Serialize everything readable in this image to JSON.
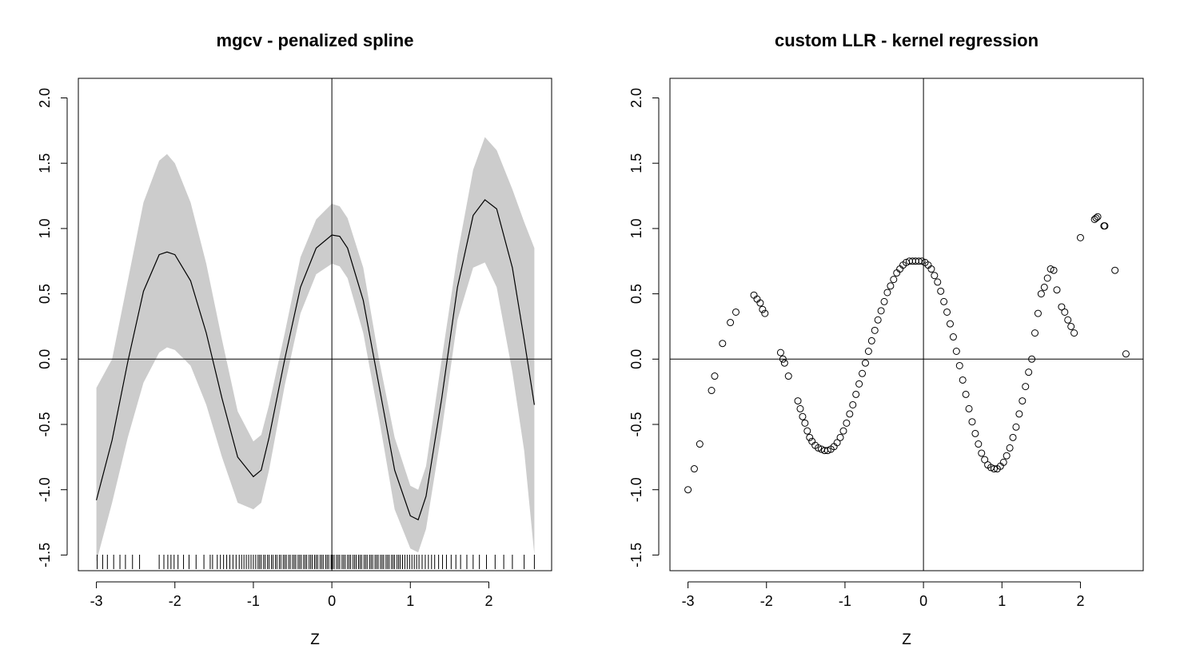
{
  "chart_data": [
    {
      "type": "line",
      "title": "mgcv - penalized spline",
      "xlabel": "Z",
      "ylabel": "",
      "xlim": [
        -3.23,
        2.8
      ],
      "ylim": [
        -1.62,
        2.15
      ],
      "xticks": [
        -3,
        -2,
        -1,
        0,
        1,
        2
      ],
      "yticks": [
        -1.5,
        -1.0,
        -0.5,
        0.0,
        0.5,
        1.0,
        1.5,
        2.0
      ],
      "xtick_labels": [
        "-3",
        "-2",
        "-1",
        "0",
        "1",
        "2"
      ],
      "ytick_labels": [
        "-1.5",
        "-1.0",
        "-0.5",
        "0.0",
        "0.5",
        "1.0",
        "1.5",
        "2.0"
      ],
      "reference_lines": {
        "x": 0,
        "y": 0
      },
      "series": [
        {
          "role": "fit",
          "color": "#000000",
          "x": [
            -3.0,
            -2.8,
            -2.6,
            -2.4,
            -2.2,
            -2.1,
            -2.0,
            -1.8,
            -1.6,
            -1.4,
            -1.2,
            -1.0,
            -0.9,
            -0.8,
            -0.6,
            -0.4,
            -0.2,
            0.0,
            0.1,
            0.2,
            0.4,
            0.6,
            0.8,
            1.0,
            1.1,
            1.2,
            1.4,
            1.6,
            1.8,
            1.95,
            2.1,
            2.3,
            2.45,
            2.58
          ],
          "y": [
            -1.08,
            -0.62,
            -0.02,
            0.52,
            0.8,
            0.82,
            0.8,
            0.6,
            0.2,
            -0.3,
            -0.75,
            -0.9,
            -0.85,
            -0.6,
            0.0,
            0.55,
            0.85,
            0.95,
            0.94,
            0.85,
            0.45,
            -0.2,
            -0.85,
            -1.2,
            -1.23,
            -1.05,
            -0.3,
            0.55,
            1.1,
            1.22,
            1.15,
            0.7,
            0.15,
            -0.35
          ]
        }
      ],
      "band": {
        "color": "#cccccc",
        "x": [
          -3.0,
          -2.8,
          -2.6,
          -2.4,
          -2.2,
          -2.1,
          -2.0,
          -1.8,
          -1.6,
          -1.4,
          -1.2,
          -1.0,
          -0.9,
          -0.8,
          -0.6,
          -0.4,
          -0.2,
          0.0,
          0.1,
          0.2,
          0.4,
          0.6,
          0.8,
          1.0,
          1.1,
          1.2,
          1.4,
          1.6,
          1.8,
          1.95,
          2.1,
          2.3,
          2.45,
          2.58
        ],
        "lower": [
          -1.55,
          -1.1,
          -0.6,
          -0.18,
          0.05,
          0.09,
          0.07,
          -0.05,
          -0.35,
          -0.75,
          -1.1,
          -1.15,
          -1.1,
          -0.85,
          -0.2,
          0.35,
          0.65,
          0.73,
          0.71,
          0.62,
          0.2,
          -0.45,
          -1.15,
          -1.45,
          -1.48,
          -1.3,
          -0.55,
          0.3,
          0.7,
          0.74,
          0.55,
          -0.1,
          -0.7,
          -1.5
        ],
        "upper": [
          -0.22,
          0.0,
          0.6,
          1.2,
          1.52,
          1.57,
          1.5,
          1.2,
          0.73,
          0.15,
          -0.4,
          -0.63,
          -0.58,
          -0.35,
          0.2,
          0.78,
          1.07,
          1.19,
          1.17,
          1.08,
          0.7,
          0.0,
          -0.6,
          -0.97,
          -1.0,
          -0.82,
          0.0,
          0.8,
          1.45,
          1.7,
          1.6,
          1.3,
          1.05,
          0.85
        ]
      },
      "rug": {
        "color": "#000000",
        "x": [
          -2.99,
          -2.92,
          -2.86,
          -2.78,
          -2.7,
          -2.63,
          -2.54,
          -2.45,
          -2.2,
          -2.14,
          -2.09,
          -2.05,
          -2.01,
          -1.96,
          -1.89,
          -1.82,
          -1.73,
          -1.63,
          -1.55,
          -1.52,
          -1.46,
          -1.42,
          -1.38,
          -1.34,
          -1.3,
          -1.26,
          -1.22,
          -1.18,
          -1.15,
          -1.12,
          -1.09,
          -1.06,
          -1.03,
          -1.0,
          -0.97,
          -0.94,
          -0.92,
          -0.9,
          -0.87,
          -0.85,
          -0.82,
          -0.8,
          -0.77,
          -0.75,
          -0.72,
          -0.7,
          -0.67,
          -0.65,
          -0.62,
          -0.6,
          -0.58,
          -0.55,
          -0.53,
          -0.5,
          -0.48,
          -0.46,
          -0.43,
          -0.41,
          -0.39,
          -0.36,
          -0.34,
          -0.32,
          -0.29,
          -0.27,
          -0.25,
          -0.22,
          -0.2,
          -0.18,
          -0.15,
          -0.13,
          -0.11,
          -0.08,
          -0.06,
          -0.04,
          -0.01,
          0.01,
          0.03,
          0.06,
          0.08,
          0.1,
          0.13,
          0.15,
          0.17,
          0.2,
          0.22,
          0.24,
          0.27,
          0.29,
          0.31,
          0.34,
          0.36,
          0.38,
          0.41,
          0.43,
          0.45,
          0.48,
          0.5,
          0.52,
          0.55,
          0.57,
          0.59,
          0.62,
          0.64,
          0.66,
          0.69,
          0.71,
          0.73,
          0.76,
          0.78,
          0.8,
          0.83,
          0.85,
          0.87,
          0.9,
          0.93,
          0.96,
          0.99,
          1.02,
          1.05,
          1.08,
          1.11,
          1.15,
          1.19,
          1.23,
          1.27,
          1.31,
          1.36,
          1.41,
          1.46,
          1.52,
          1.58,
          1.64,
          1.72,
          1.8,
          1.88,
          1.97,
          2.08,
          2.19,
          2.3,
          2.45,
          2.58
        ]
      }
    },
    {
      "type": "scatter",
      "title": "custom LLR - kernel regression",
      "xlabel": "Z",
      "ylabel": "",
      "xlim": [
        -3.23,
        2.8
      ],
      "ylim": [
        -1.62,
        2.15
      ],
      "xticks": [
        -3,
        -2,
        -1,
        0,
        1,
        2
      ],
      "yticks": [
        -1.5,
        -1.0,
        -0.5,
        0.0,
        0.5,
        1.0,
        1.5,
        2.0
      ],
      "xtick_labels": [
        "-3",
        "-2",
        "-1",
        "0",
        "1",
        "2"
      ],
      "ytick_labels": [
        "-1.5",
        "-1.0",
        "-0.5",
        "0.0",
        "0.5",
        "1.0",
        "1.5",
        "2.0"
      ],
      "reference_lines": {
        "x": 0,
        "y": 0
      },
      "series": [
        {
          "role": "points",
          "marker": "open-circle",
          "color": "#000000",
          "x": [
            -3.0,
            -2.92,
            -2.85,
            -2.7,
            -2.66,
            -2.56,
            -2.46,
            -2.39,
            -2.16,
            -2.12,
            -2.08,
            -2.05,
            -2.02,
            -1.82,
            -1.79,
            -1.77,
            -1.72,
            -1.6,
            -1.57,
            -1.54,
            -1.51,
            -1.48,
            -1.45,
            -1.42,
            -1.38,
            -1.34,
            -1.3,
            -1.26,
            -1.22,
            -1.18,
            -1.14,
            -1.1,
            -1.06,
            -1.02,
            -0.98,
            -0.94,
            -0.9,
            -0.86,
            -0.82,
            -0.78,
            -0.74,
            -0.7,
            -0.66,
            -0.62,
            -0.58,
            -0.54,
            -0.5,
            -0.46,
            -0.42,
            -0.38,
            -0.34,
            -0.3,
            -0.26,
            -0.22,
            -0.18,
            -0.14,
            -0.1,
            -0.06,
            -0.02,
            0.02,
            0.06,
            0.1,
            0.14,
            0.18,
            0.22,
            0.26,
            0.3,
            0.34,
            0.38,
            0.42,
            0.46,
            0.5,
            0.54,
            0.58,
            0.62,
            0.66,
            0.7,
            0.74,
            0.78,
            0.82,
            0.86,
            0.9,
            0.94,
            0.98,
            1.02,
            1.06,
            1.1,
            1.14,
            1.18,
            1.22,
            1.26,
            1.3,
            1.34,
            1.38,
            1.42,
            1.46,
            1.5,
            1.54,
            1.58,
            1.62,
            1.66,
            1.7,
            1.76,
            1.8,
            1.84,
            1.88,
            1.92,
            2.0,
            2.18,
            2.2,
            2.22,
            2.3,
            2.31,
            2.44,
            2.58
          ],
          "y": [
            -1.0,
            -0.84,
            -0.65,
            -0.24,
            -0.13,
            0.12,
            0.28,
            0.36,
            0.49,
            0.46,
            0.43,
            0.38,
            0.35,
            0.05,
            0.0,
            -0.03,
            -0.13,
            -0.32,
            -0.38,
            -0.44,
            -0.49,
            -0.55,
            -0.6,
            -0.63,
            -0.66,
            -0.68,
            -0.69,
            -0.7,
            -0.7,
            -0.69,
            -0.67,
            -0.64,
            -0.6,
            -0.55,
            -0.49,
            -0.42,
            -0.35,
            -0.27,
            -0.19,
            -0.11,
            -0.03,
            0.06,
            0.14,
            0.22,
            0.3,
            0.37,
            0.44,
            0.51,
            0.56,
            0.61,
            0.66,
            0.69,
            0.72,
            0.74,
            0.75,
            0.75,
            0.75,
            0.75,
            0.75,
            0.74,
            0.72,
            0.69,
            0.64,
            0.59,
            0.52,
            0.44,
            0.36,
            0.27,
            0.17,
            0.06,
            -0.05,
            -0.16,
            -0.27,
            -0.38,
            -0.48,
            -0.57,
            -0.65,
            -0.72,
            -0.77,
            -0.81,
            -0.83,
            -0.84,
            -0.84,
            -0.82,
            -0.79,
            -0.74,
            -0.68,
            -0.6,
            -0.52,
            -0.42,
            -0.32,
            -0.21,
            -0.1,
            0.0,
            0.2,
            0.35,
            0.5,
            0.55,
            0.62,
            0.69,
            0.68,
            0.53,
            0.4,
            0.36,
            0.3,
            0.25,
            0.2,
            0.93,
            1.07,
            1.08,
            1.09,
            1.02,
            1.02,
            0.68,
            0.04
          ]
        }
      ]
    }
  ]
}
